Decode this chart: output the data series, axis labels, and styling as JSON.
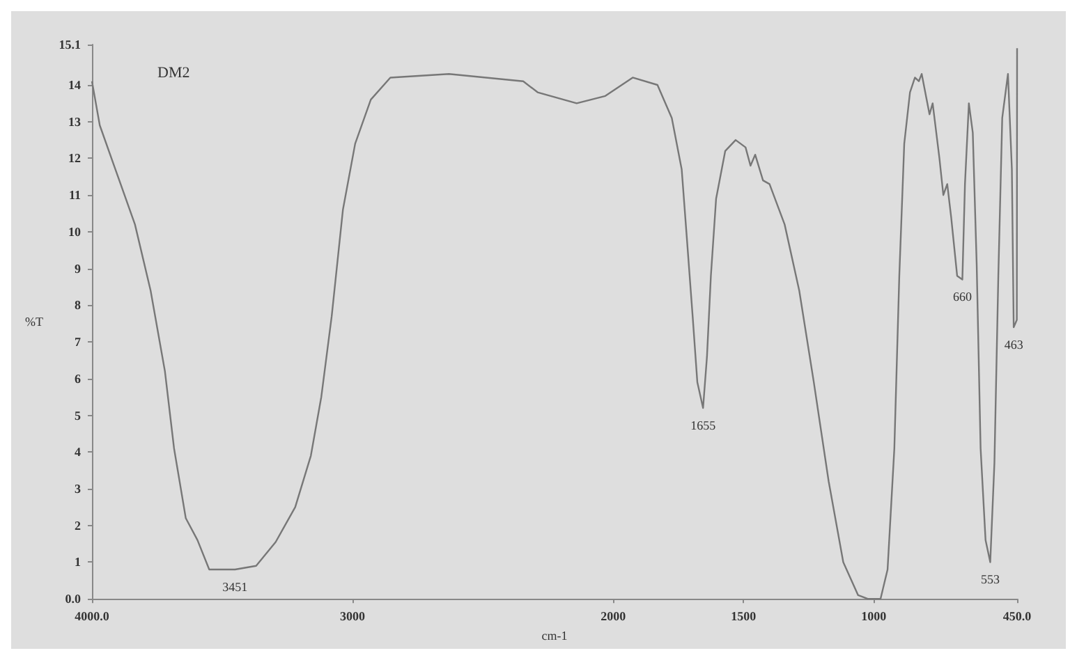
{
  "chart_data": {
    "type": "line",
    "title": "DM2",
    "xlabel": "cm-1",
    "ylabel": "%T",
    "x": [
      4000,
      3970,
      3910,
      3835,
      3775,
      3720,
      3685,
      3640,
      3595,
      3550,
      3495,
      3451,
      3370,
      3295,
      3220,
      3160,
      3120,
      3080,
      3037,
      2990,
      2930,
      2855,
      2630,
      2345,
      2290,
      2140,
      2030,
      1925,
      1830,
      1775,
      1737,
      1718,
      1695,
      1677,
      1655,
      1640,
      1625,
      1605,
      1570,
      1530,
      1492,
      1473,
      1455,
      1425,
      1400,
      1342,
      1286,
      1230,
      1173,
      1117,
      1060,
      1023,
      974,
      947,
      921,
      902,
      883,
      861,
      842,
      827,
      816,
      797,
      786,
      774,
      748,
      733,
      718,
      703,
      680,
      660,
      650,
      635,
      620,
      605,
      590,
      571,
      553,
      537,
      522,
      507,
      485,
      470,
      463,
      451,
      450
    ],
    "series": [
      {
        "color": "#777777",
        "values": [
          14.1,
          12.9,
          11.7,
          10.2,
          8.4,
          6.2,
          4.1,
          2.2,
          1.6,
          0.8,
          0.8,
          0.8,
          0.9,
          1.55,
          2.5,
          3.9,
          5.5,
          7.7,
          10.6,
          12.4,
          13.6,
          14.2,
          14.3,
          14.1,
          13.8,
          13.5,
          13.7,
          14.2,
          14.0,
          13.1,
          11.7,
          9.9,
          7.7,
          5.9,
          5.2,
          6.6,
          8.8,
          10.9,
          12.2,
          12.5,
          12.3,
          11.8,
          12.1,
          11.4,
          11.3,
          10.2,
          8.4,
          5.9,
          3.2,
          1.0,
          0.1,
          0,
          0,
          0.8,
          4.1,
          8.8,
          12.4,
          13.8,
          14.2,
          14.1,
          14.3,
          13.6,
          13.2,
          13.5,
          12.0,
          11.0,
          11.3,
          10.4,
          8.8,
          8.7,
          11.3,
          13.5,
          12.7,
          9.1,
          4.1,
          1.6,
          1.0,
          3.7,
          8.8,
          13.1,
          14.3,
          11.7,
          7.4,
          7.6,
          15.0
        ]
      }
    ],
    "xlim": [
      4000,
      450
    ],
    "xticks": [
      {
        "value": 4000,
        "label": "4000.0"
      },
      3000,
      2000,
      1500,
      1000,
      {
        "value": 450,
        "label": "450.0"
      }
    ],
    "ylim": [
      0,
      15.1
    ],
    "yticks": [
      {
        "value": 0,
        "label": "0.0"
      },
      1,
      2,
      3,
      4,
      5,
      6,
      7,
      8,
      9,
      10,
      11,
      12,
      13,
      14,
      15.1
    ],
    "annotations": [
      {
        "text": "3451",
        "x": 3451,
        "y": 0.8
      },
      {
        "text": "1655",
        "x": 1655,
        "y": 5.2
      },
      {
        "text": "660",
        "x": 660,
        "y": 8.7
      },
      {
        "text": "553",
        "x": 553,
        "y": 1.0
      },
      {
        "text": "463",
        "x": 463,
        "y": 7.4
      }
    ],
    "grid": false,
    "marker": "none",
    "line_style": "solid"
  }
}
